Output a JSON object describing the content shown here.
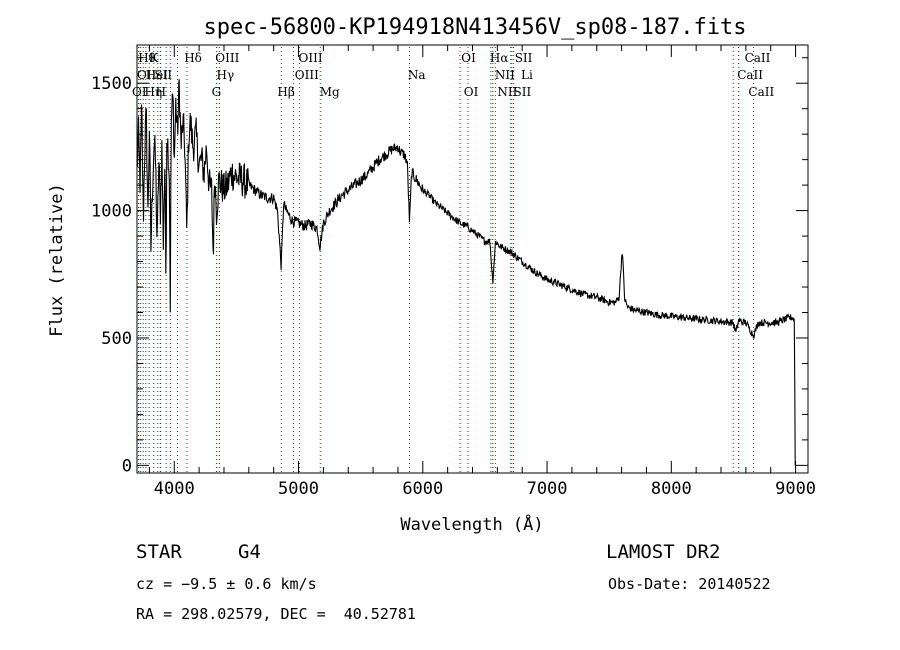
{
  "chart_data": {
    "type": "line",
    "title": "spec-56800-KP194918N413456V_sp08-187.fits",
    "xlabel": "Wavelength (Å)",
    "ylabel": "Flux (relative)",
    "xlim": [
      3700,
      9100
    ],
    "ylim": [
      -30,
      1650
    ],
    "x_ticks": [
      4000,
      5000,
      6000,
      7000,
      8000,
      9000
    ],
    "y_ticks": [
      0,
      500,
      1000,
      1500
    ],
    "grid": false,
    "line_color": "#000000",
    "marker_color": "#cc0000",
    "series": [
      {
        "x": [
          3700,
          3712,
          3725,
          3738,
          3750,
          3762,
          3775,
          3788,
          3800,
          3812,
          3825,
          3838,
          3850,
          3862,
          3875,
          3888,
          3900,
          3912,
          3925,
          3933,
          3940,
          3950,
          3960,
          3968,
          3975,
          3990,
          4000,
          4012,
          4025,
          4040,
          4055,
          4070,
          4085,
          4101,
          4115,
          4130,
          4150,
          4175,
          4200,
          4220,
          4240,
          4260,
          4280,
          4300,
          4314,
          4325,
          4340,
          4360,
          4380,
          4400,
          4430,
          4460,
          4500,
          4550,
          4600,
          4650,
          4700,
          4750,
          4800,
          4830,
          4861,
          4880,
          4900,
          4950,
          5000,
          5050,
          5100,
          5150,
          5172,
          5200,
          5250,
          5300,
          5350,
          5400,
          5450,
          5500,
          5550,
          5600,
          5650,
          5700,
          5750,
          5800,
          5820,
          5850,
          5875,
          5893,
          5910,
          5950,
          6000,
          6050,
          6100,
          6150,
          6200,
          6250,
          6300,
          6350,
          6400,
          6450,
          6500,
          6540,
          6563,
          6585,
          6620,
          6700,
          6800,
          6900,
          7000,
          7100,
          7200,
          7300,
          7400,
          7500,
          7550,
          7580,
          7605,
          7625,
          7650,
          7700,
          7800,
          7900,
          8000,
          8100,
          8200,
          8300,
          8400,
          8498,
          8520,
          8542,
          8560,
          8600,
          8662,
          8700,
          8800,
          8850,
          8900,
          8950,
          8980,
          9000
        ],
        "y": [
          1150,
          1300,
          1100,
          1420,
          950,
          1250,
          1380,
          980,
          1330,
          850,
          1100,
          1280,
          1180,
          850,
          1200,
          1000,
          1250,
          880,
          1200,
          700,
          1300,
          1250,
          1150,
          640,
          1350,
          1450,
          1200,
          1420,
          1300,
          1500,
          1250,
          1350,
          1250,
          900,
          1280,
          1350,
          1250,
          1300,
          1180,
          1200,
          1150,
          1250,
          1100,
          1080,
          820,
          1150,
          1000,
          1120,
          1100,
          1080,
          1100,
          1150,
          1130,
          1120,
          1100,
          1080,
          1060,
          1050,
          1050,
          1000,
          780,
          1030,
          1000,
          960,
          950,
          940,
          950,
          930,
          860,
          950,
          1000,
          1030,
          1060,
          1080,
          1100,
          1120,
          1140,
          1170,
          1200,
          1220,
          1240,
          1250,
          1230,
          1220,
          1190,
          950,
          1150,
          1120,
          1080,
          1060,
          1030,
          1010,
          990,
          970,
          950,
          940,
          920,
          900,
          880,
          880,
          720,
          880,
          860,
          840,
          800,
          760,
          730,
          710,
          690,
          670,
          660,
          640,
          640,
          660,
          850,
          650,
          620,
          610,
          600,
          590,
          585,
          580,
          575,
          570,
          565,
          560,
          520,
          570,
          565,
          560,
          510,
          560,
          560,
          560,
          570,
          580,
          580,
          560
        ]
      }
    ],
    "lines": {
      "top_row1": [
        "Hθ",
        "K",
        "Hδ",
        "OIII",
        "OIII",
        "OI",
        "Hα",
        "SII",
        "CaII"
      ],
      "top_row2": [
        "OII",
        "HeI",
        "SII",
        "Hγ",
        "OIII",
        "Na",
        "NII",
        "Li",
        "CaII"
      ],
      "top_row3": [
        "OI",
        "Hη",
        "H",
        "G",
        "Hβ",
        "Mg",
        "OI",
        "NII",
        "SII",
        "CaII"
      ]
    }
  },
  "info": {
    "object_type": "STAR",
    "subclass": "G4",
    "survey": "LAMOST DR2",
    "velocity": "cz = −9.5 ± 0.6 km/s",
    "obs_date": "Obs-Date: 20140522",
    "coords": "RA = 298.02579, DEC =  40.52781"
  }
}
